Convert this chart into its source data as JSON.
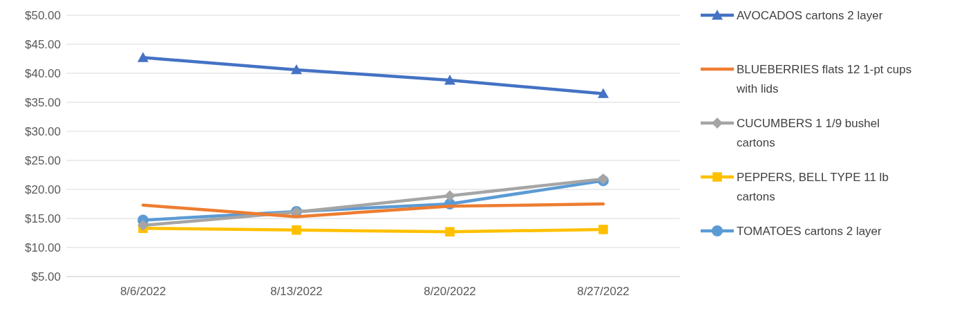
{
  "chart_data": {
    "type": "line",
    "categories": [
      "8/6/2022",
      "8/13/2022",
      "8/20/2022",
      "8/27/2022"
    ],
    "ylim": [
      5,
      50
    ],
    "yticks": [
      {
        "value": 5,
        "label": "$5.00"
      },
      {
        "value": 10,
        "label": "$10.00"
      },
      {
        "value": 15,
        "label": "$15.00"
      },
      {
        "value": 20,
        "label": "$20.00"
      },
      {
        "value": 25,
        "label": "$25.00"
      },
      {
        "value": 30,
        "label": "$30.00"
      },
      {
        "value": 35,
        "label": "$35.00"
      },
      {
        "value": 40,
        "label": "$40.00"
      },
      {
        "value": 45,
        "label": "$45.00"
      },
      {
        "value": 50,
        "label": "$50.00"
      }
    ],
    "grid": "y",
    "legend": "right",
    "series": [
      {
        "name": "AVOCADOS cartons 2 layer",
        "color": "#4472c4",
        "marker": "triangle",
        "values": [
          42.7,
          40.6,
          38.8,
          36.5
        ]
      },
      {
        "name": "BLUEBERRIES flats 12 1-pt cups with lids",
        "color": "#ed7d31",
        "marker": "none",
        "values": [
          17.3,
          15.3,
          17.1,
          17.5
        ]
      },
      {
        "name": "CUCUMBERS 1 1/9 bushel cartons",
        "color": "#a5a5a5",
        "marker": "diamond",
        "values": [
          13.8,
          16.1,
          18.9,
          21.8
        ]
      },
      {
        "name": "PEPPERS, BELL TYPE 11 lb cartons",
        "color": "#ffc000",
        "marker": "square",
        "values": [
          13.3,
          13.0,
          12.7,
          13.1
        ]
      },
      {
        "name": "TOMATOES cartons 2 layer",
        "color": "#5b9bd5",
        "marker": "circle",
        "values": [
          14.7,
          16.2,
          17.5,
          21.5
        ]
      }
    ]
  }
}
